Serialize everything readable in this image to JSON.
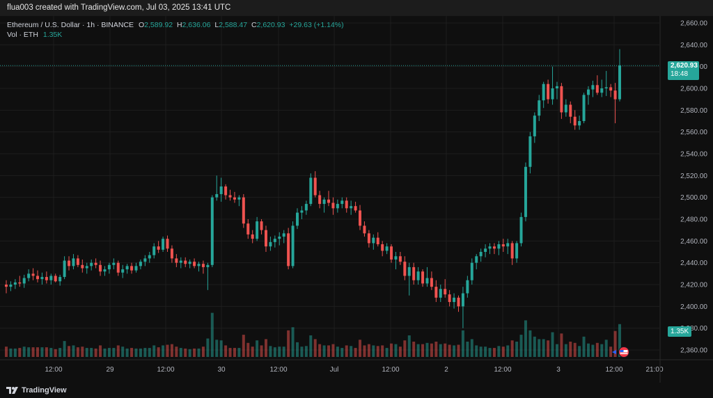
{
  "header": {
    "caption": "flua003 created with TradingView.com, Jul 03, 2025 13:41 UTC"
  },
  "legend": {
    "symbol": "Ethereum / U.S. Dollar · 1h · BINANCE",
    "o_key": "O",
    "o_val": "2,589.92",
    "h_key": "H",
    "h_val": "2,636.06",
    "l_key": "L",
    "l_val": "2,588.47",
    "c_key": "C",
    "c_val": "2,620.93",
    "change": "+29.63 (+1.14%)",
    "vol_label": "Vol · ETH",
    "vol_val": "1.35K"
  },
  "price_tag": {
    "price": "2,620.93",
    "countdown": "18:48"
  },
  "volume_tag": "1.35K",
  "branding": {
    "logo_text": "TradingView"
  },
  "colors": {
    "up": "#26a69a",
    "down": "#ef5350",
    "grid": "#1e1e1e",
    "text": "#b2b5be"
  },
  "chart_data": {
    "type": "candlestick",
    "symbol": "Ethereum / U.S. Dollar",
    "interval": "1h",
    "exchange": "BINANCE",
    "last_price": 2620.93,
    "ylim": [
      2350,
      2670
    ],
    "y_ticks": [
      "2,360.00",
      "2,380.00",
      "2,400.00",
      "2,420.00",
      "2,440.00",
      "2,460.00",
      "2,480.00",
      "2,500.00",
      "2,520.00",
      "2,540.00",
      "2,560.00",
      "2,580.00",
      "2,600.00",
      "2,620.00",
      "2,640.00",
      "2,660.00"
    ],
    "x_ticks": [
      "12:00",
      "29",
      "12:00",
      "30",
      "12:00",
      "Jul",
      "12:00",
      "2",
      "12:00",
      "3",
      "12:00",
      "21:00"
    ],
    "candles": [
      [
        2420,
        2424,
        2412,
        2418
      ],
      [
        2418,
        2423,
        2414,
        2420
      ],
      [
        2420,
        2425,
        2416,
        2422
      ],
      [
        2422,
        2428,
        2418,
        2421
      ],
      [
        2421,
        2429,
        2417,
        2426
      ],
      [
        2426,
        2434,
        2423,
        2430
      ],
      [
        2430,
        2435,
        2424,
        2428
      ],
      [
        2428,
        2433,
        2422,
        2425
      ],
      [
        2425,
        2431,
        2420,
        2427
      ],
      [
        2427,
        2432,
        2421,
        2424
      ],
      [
        2424,
        2430,
        2420,
        2428
      ],
      [
        2428,
        2430,
        2422,
        2423
      ],
      [
        2423,
        2429,
        2419,
        2427
      ],
      [
        2427,
        2446,
        2425,
        2442
      ],
      [
        2442,
        2446,
        2433,
        2437
      ],
      [
        2437,
        2448,
        2434,
        2444
      ],
      [
        2444,
        2447,
        2436,
        2438
      ],
      [
        2438,
        2443,
        2431,
        2435
      ],
      [
        2435,
        2440,
        2430,
        2437
      ],
      [
        2437,
        2443,
        2433,
        2440
      ],
      [
        2440,
        2444,
        2435,
        2438
      ],
      [
        2438,
        2442,
        2428,
        2432
      ],
      [
        2432,
        2437,
        2428,
        2434
      ],
      [
        2434,
        2440,
        2430,
        2438
      ],
      [
        2438,
        2444,
        2434,
        2440
      ],
      [
        2440,
        2442,
        2428,
        2431
      ],
      [
        2431,
        2438,
        2426,
        2434
      ],
      [
        2434,
        2439,
        2430,
        2437
      ],
      [
        2437,
        2440,
        2430,
        2433
      ],
      [
        2433,
        2440,
        2431,
        2437
      ],
      [
        2437,
        2443,
        2434,
        2441
      ],
      [
        2441,
        2447,
        2437,
        2444
      ],
      [
        2444,
        2450,
        2440,
        2447
      ],
      [
        2447,
        2458,
        2444,
        2455
      ],
      [
        2455,
        2460,
        2449,
        2452
      ],
      [
        2452,
        2464,
        2450,
        2462
      ],
      [
        2462,
        2465,
        2450,
        2453
      ],
      [
        2453,
        2456,
        2440,
        2444
      ],
      [
        2444,
        2448,
        2436,
        2440
      ],
      [
        2440,
        2445,
        2435,
        2442
      ],
      [
        2442,
        2445,
        2436,
        2439
      ],
      [
        2439,
        2443,
        2435,
        2441
      ],
      [
        2441,
        2444,
        2435,
        2437
      ],
      [
        2437,
        2441,
        2432,
        2439
      ],
      [
        2439,
        2442,
        2430,
        2436
      ],
      [
        2436,
        2440,
        2415,
        2438
      ],
      [
        2438,
        2502,
        2436,
        2500
      ],
      [
        2500,
        2520,
        2497,
        2503
      ],
      [
        2503,
        2518,
        2496,
        2510
      ],
      [
        2510,
        2512,
        2498,
        2502
      ],
      [
        2502,
        2507,
        2497,
        2500
      ],
      [
        2500,
        2505,
        2495,
        2498
      ],
      [
        2498,
        2502,
        2492,
        2500
      ],
      [
        2500,
        2503,
        2472,
        2476
      ],
      [
        2476,
        2480,
        2462,
        2466
      ],
      [
        2466,
        2470,
        2458,
        2462
      ],
      [
        2462,
        2482,
        2460,
        2478
      ],
      [
        2478,
        2480,
        2466,
        2470
      ],
      [
        2470,
        2474,
        2450,
        2455
      ],
      [
        2455,
        2464,
        2451,
        2459
      ],
      [
        2459,
        2465,
        2454,
        2462
      ],
      [
        2462,
        2468,
        2456,
        2464
      ],
      [
        2464,
        2470,
        2458,
        2467
      ],
      [
        2467,
        2472,
        2434,
        2437
      ],
      [
        2437,
        2478,
        2435,
        2474
      ],
      [
        2474,
        2490,
        2471,
        2486
      ],
      [
        2486,
        2492,
        2480,
        2488
      ],
      [
        2488,
        2497,
        2484,
        2494
      ],
      [
        2494,
        2522,
        2492,
        2518
      ],
      [
        2518,
        2524,
        2500,
        2502
      ],
      [
        2502,
        2506,
        2490,
        2494
      ],
      [
        2494,
        2500,
        2486,
        2498
      ],
      [
        2498,
        2506,
        2492,
        2495
      ],
      [
        2495,
        2500,
        2484,
        2490
      ],
      [
        2490,
        2498,
        2486,
        2494
      ],
      [
        2494,
        2500,
        2490,
        2497
      ],
      [
        2497,
        2500,
        2486,
        2490
      ],
      [
        2490,
        2497,
        2484,
        2492
      ],
      [
        2492,
        2496,
        2486,
        2488
      ],
      [
        2488,
        2493,
        2470,
        2474
      ],
      [
        2474,
        2478,
        2464,
        2467
      ],
      [
        2467,
        2470,
        2454,
        2458
      ],
      [
        2458,
        2466,
        2452,
        2463
      ],
      [
        2463,
        2468,
        2455,
        2457
      ],
      [
        2457,
        2460,
        2446,
        2451
      ],
      [
        2451,
        2458,
        2448,
        2455
      ],
      [
        2455,
        2457,
        2440,
        2443
      ],
      [
        2443,
        2450,
        2434,
        2446
      ],
      [
        2446,
        2450,
        2438,
        2441
      ],
      [
        2441,
        2446,
        2424,
        2428
      ],
      [
        2428,
        2440,
        2410,
        2436
      ],
      [
        2436,
        2440,
        2420,
        2424
      ],
      [
        2424,
        2436,
        2420,
        2432
      ],
      [
        2432,
        2434,
        2418,
        2421
      ],
      [
        2421,
        2436,
        2418,
        2426
      ],
      [
        2426,
        2432,
        2415,
        2418
      ],
      [
        2418,
        2424,
        2404,
        2408
      ],
      [
        2408,
        2420,
        2404,
        2416
      ],
      [
        2416,
        2425,
        2408,
        2411
      ],
      [
        2411,
        2415,
        2400,
        2404
      ],
      [
        2404,
        2412,
        2398,
        2408
      ],
      [
        2408,
        2410,
        2395,
        2400
      ],
      [
        2400,
        2418,
        2380,
        2412
      ],
      [
        2412,
        2428,
        2408,
        2424
      ],
      [
        2424,
        2444,
        2420,
        2440
      ],
      [
        2440,
        2448,
        2434,
        2446
      ],
      [
        2446,
        2453,
        2441,
        2450
      ],
      [
        2450,
        2457,
        2445,
        2453
      ],
      [
        2453,
        2458,
        2448,
        2455
      ],
      [
        2455,
        2458,
        2448,
        2453
      ],
      [
        2453,
        2460,
        2447,
        2457
      ],
      [
        2457,
        2462,
        2450,
        2455
      ],
      [
        2455,
        2462,
        2448,
        2458
      ],
      [
        2458,
        2460,
        2438,
        2444
      ],
      [
        2444,
        2460,
        2440,
        2458
      ],
      [
        2458,
        2486,
        2455,
        2482
      ],
      [
        2482,
        2532,
        2478,
        2528
      ],
      [
        2528,
        2560,
        2522,
        2556
      ],
      [
        2556,
        2578,
        2550,
        2575
      ],
      [
        2575,
        2594,
        2570,
        2589
      ],
      [
        2589,
        2606,
        2582,
        2604
      ],
      [
        2604,
        2608,
        2586,
        2590
      ],
      [
        2590,
        2620,
        2585,
        2600
      ],
      [
        2600,
        2606,
        2590,
        2602
      ],
      [
        2602,
        2605,
        2572,
        2578
      ],
      [
        2578,
        2590,
        2574,
        2585
      ],
      [
        2585,
        2588,
        2568,
        2574
      ],
      [
        2574,
        2580,
        2562,
        2566
      ],
      [
        2566,
        2575,
        2562,
        2570
      ],
      [
        2570,
        2596,
        2568,
        2594
      ],
      [
        2594,
        2602,
        2585,
        2599
      ],
      [
        2599,
        2607,
        2592,
        2603
      ],
      [
        2603,
        2612,
        2594,
        2596
      ],
      [
        2596,
        2608,
        2592,
        2600
      ],
      [
        2600,
        2616,
        2593,
        2601
      ],
      [
        2601,
        2604,
        2592,
        2598
      ],
      [
        2598,
        2605,
        2568,
        2590
      ],
      [
        2590,
        2636,
        2588,
        2621
      ]
    ],
    "volume_ticks": [
      "1.35K"
    ]
  }
}
